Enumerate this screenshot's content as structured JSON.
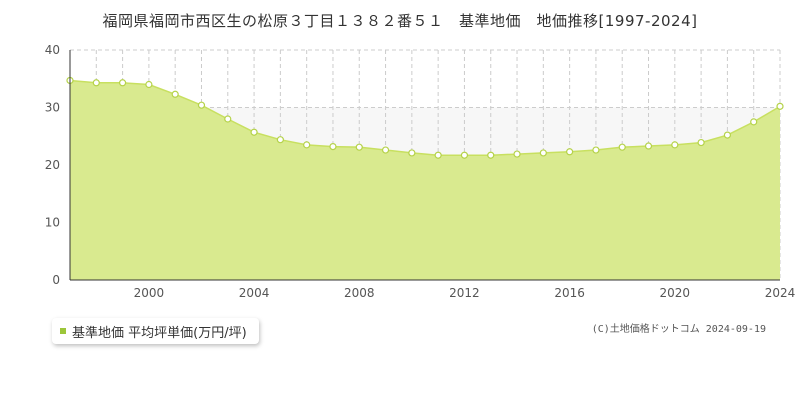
{
  "title": "福岡県福岡市西区生の松原３丁目１３８２番５１　基準地価　地価推移[1997-2024]",
  "legend": {
    "label": "基準地価 平均坪単価(万円/坪)",
    "color": "#9cc63a"
  },
  "copyright": "(C)土地価格ドットコム 2024-09-19",
  "chart_data": {
    "type": "area",
    "title": "福岡県福岡市西区生の松原３丁目１３８２番５１　基準地価　地価推移[1997-2024]",
    "xlabel": "",
    "ylabel": "",
    "xlim": [
      1997,
      2024
    ],
    "ylim": [
      0,
      40
    ],
    "yticks": [
      0,
      10,
      20,
      30,
      40
    ],
    "xticks": [
      2000,
      2004,
      2008,
      2012,
      2016,
      2020,
      2024
    ],
    "grid": true,
    "colors": {
      "fill": "#d9ea8f",
      "line": "#c8e060",
      "marker_fill": "#ffffff",
      "marker_stroke": "#b5d24a",
      "target_band": "#f7f7f7"
    },
    "series": [
      {
        "name": "基準地価 平均坪単価(万円/坪)",
        "x": [
          1997,
          1998,
          1999,
          2000,
          2001,
          2002,
          2003,
          2004,
          2005,
          2006,
          2007,
          2008,
          2009,
          2010,
          2011,
          2012,
          2013,
          2014,
          2015,
          2016,
          2017,
          2018,
          2019,
          2020,
          2021,
          2022,
          2023,
          2024
        ],
        "values": [
          34.7,
          34.3,
          34.3,
          34.0,
          32.3,
          30.4,
          28.0,
          25.7,
          24.4,
          23.5,
          23.2,
          23.1,
          22.6,
          22.1,
          21.7,
          21.7,
          21.7,
          21.9,
          22.1,
          22.3,
          22.6,
          23.1,
          23.3,
          23.5,
          23.9,
          25.2,
          27.5,
          30.2
        ]
      }
    ]
  }
}
